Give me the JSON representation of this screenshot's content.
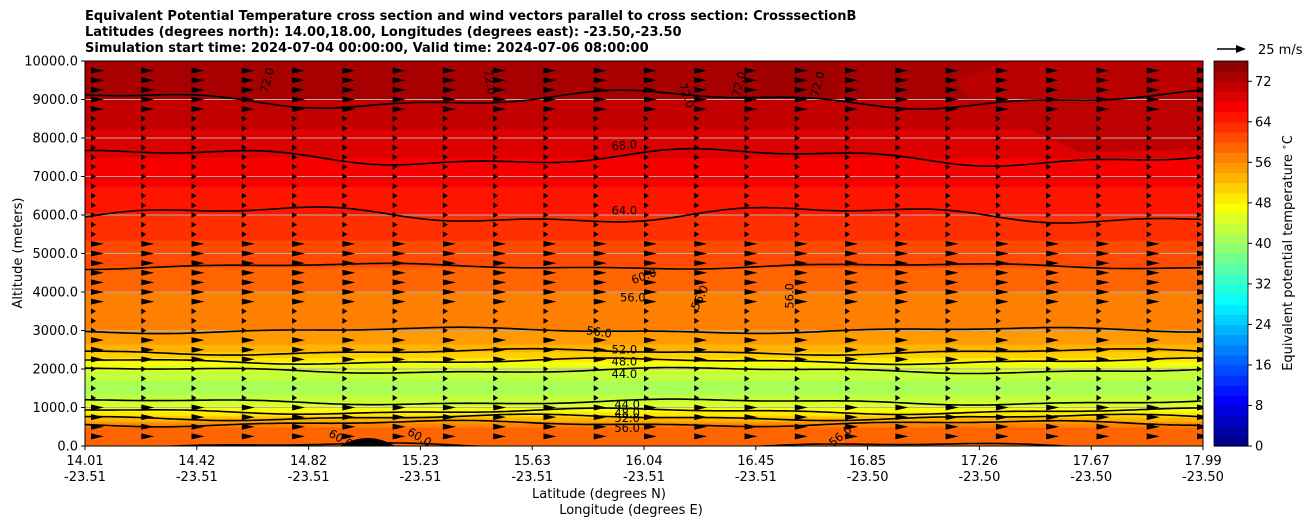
{
  "chart_data": {
    "type": "heatmap",
    "title_lines": [
      "Equivalent Potential Temperature cross section and wind vectors parallel to cross section: CrosssectionB",
      "Latitudes (degrees north): 14.00,18.00, Longitudes (degrees east): -23.50,-23.50",
      "Simulation start time: 2024-07-04 00:00:00, Valid time: 2024-07-06 08:00:00"
    ],
    "ylabel": "Altitude (meters)",
    "xlabel": "Latitude (degrees N)",
    "xlabel2": "Longitude (degrees E)",
    "colorbar_label": "Equivalent potential temperature $^\\circ$C",
    "quiver_key": "25 m/s",
    "ylim": [
      0,
      10000
    ],
    "yticks": [
      "0.0",
      "1000.0",
      "2000.0",
      "3000.0",
      "4000.0",
      "5000.0",
      "6000.0",
      "7000.0",
      "8000.0",
      "9000.0",
      "10000.0"
    ],
    "x_ticks": [
      {
        "lat": "14.01",
        "lon": "-23.51"
      },
      {
        "lat": "14.42",
        "lon": "-23.51"
      },
      {
        "lat": "14.82",
        "lon": "-23.51"
      },
      {
        "lat": "15.23",
        "lon": "-23.51"
      },
      {
        "lat": "15.63",
        "lon": "-23.51"
      },
      {
        "lat": "16.04",
        "lon": "-23.51"
      },
      {
        "lat": "16.45",
        "lon": "-23.51"
      },
      {
        "lat": "16.85",
        "lon": "-23.50"
      },
      {
        "lat": "17.26",
        "lon": "-23.50"
      },
      {
        "lat": "17.67",
        "lon": "-23.50"
      },
      {
        "lat": "17.99",
        "lon": "-23.50"
      }
    ],
    "colorbar_ticks": [
      "0",
      "8",
      "16",
      "24",
      "32",
      "40",
      "48",
      "56",
      "64",
      "72"
    ],
    "colorbar_range": [
      0,
      76
    ],
    "profile": [
      {
        "alt": 0,
        "theta": 60
      },
      {
        "alt": 500,
        "theta": 58
      },
      {
        "alt": 900,
        "theta": 48
      },
      {
        "alt": 1200,
        "theta": 43
      },
      {
        "alt": 1500,
        "theta": 41
      },
      {
        "alt": 1900,
        "theta": 43
      },
      {
        "alt": 2200,
        "theta": 48
      },
      {
        "alt": 2500,
        "theta": 53
      },
      {
        "alt": 3000,
        "theta": 56
      },
      {
        "alt": 4000,
        "theta": 58
      },
      {
        "alt": 5000,
        "theta": 61
      },
      {
        "alt": 6000,
        "theta": 64
      },
      {
        "alt": 7500,
        "theta": 68
      },
      {
        "alt": 9000,
        "theta": 72
      },
      {
        "alt": 10000,
        "theta": 74
      }
    ],
    "contour_labels": [
      {
        "text": "72.0",
        "lat": 14.66,
        "alt": 9500,
        "rot": -75
      },
      {
        "text": "72.0",
        "lat": 15.45,
        "alt": 9450,
        "rot": 80
      },
      {
        "text": "72.0",
        "lat": 16.15,
        "alt": 9100,
        "rot": 70
      },
      {
        "text": "72.0",
        "lat": 16.34,
        "alt": 9400,
        "rot": -75
      },
      {
        "text": "72.0",
        "lat": 16.62,
        "alt": 9400,
        "rot": -75
      },
      {
        "text": "68.0",
        "lat": 15.93,
        "alt": 7800,
        "rot": -5
      },
      {
        "text": "64.0",
        "lat": 15.93,
        "alt": 6100,
        "rot": 0
      },
      {
        "text": "60.0",
        "lat": 16.0,
        "alt": 4400,
        "rot": -20
      },
      {
        "text": "56.0",
        "lat": 15.96,
        "alt": 3850,
        "rot": 0
      },
      {
        "text": "56.0",
        "lat": 16.2,
        "alt": 3850,
        "rot": -65
      },
      {
        "text": "56.0",
        "lat": 16.52,
        "alt": 3900,
        "rot": -90
      },
      {
        "text": "56.0",
        "lat": 15.84,
        "alt": 2950,
        "rot": 8
      },
      {
        "text": "52.0",
        "lat": 15.93,
        "alt": 2500,
        "rot": 0
      },
      {
        "text": "48.0",
        "lat": 15.93,
        "alt": 2180,
        "rot": 0
      },
      {
        "text": "44.0",
        "lat": 15.93,
        "alt": 1860,
        "rot": 0
      },
      {
        "text": "44.0",
        "lat": 15.94,
        "alt": 1060,
        "rot": 0
      },
      {
        "text": "48.0",
        "lat": 15.94,
        "alt": 850,
        "rot": 0
      },
      {
        "text": "52.0",
        "lat": 15.94,
        "alt": 720,
        "rot": 0
      },
      {
        "text": "56.0",
        "lat": 15.94,
        "alt": 460,
        "rot": 0
      },
      {
        "text": "60.0",
        "lat": 14.92,
        "alt": 180,
        "rot": 30
      },
      {
        "text": "60.0",
        "lat": 15.2,
        "alt": 220,
        "rot": 30
      },
      {
        "text": "56.0",
        "lat": 16.7,
        "alt": 250,
        "rot": -40
      }
    ]
  }
}
